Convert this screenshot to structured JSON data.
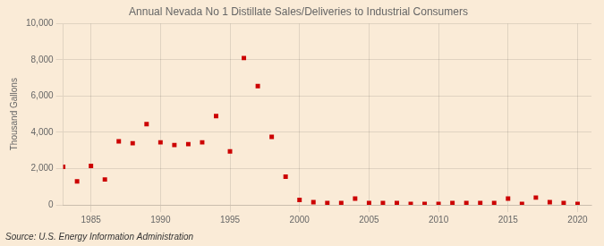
{
  "chart_data": {
    "type": "scatter",
    "title": "Annual Nevada No 1 Distillate Sales/Deliveries to Industrial Consumers",
    "ylabel": "Thousand Gallons",
    "annotations": [
      "Source: U.S. Energy Information Administration"
    ],
    "color": "#cc0000",
    "marker": "square",
    "grid": true,
    "xlim": [
      1983,
      2021
    ],
    "ylim": [
      0,
      10000
    ],
    "xticks": [
      1985,
      1990,
      1995,
      2000,
      2005,
      2010,
      2015,
      2020
    ],
    "yticks": [
      0,
      {
        "value": 2000,
        "label": "2,000"
      },
      {
        "value": 4000,
        "label": "4,000"
      },
      {
        "value": 6000,
        "label": "6,000"
      },
      {
        "value": 8000,
        "label": "8,000"
      },
      {
        "value": 10000,
        "label": "10,000"
      }
    ],
    "x": [
      1983,
      1984,
      1985,
      1986,
      1987,
      1988,
      1989,
      1990,
      1991,
      1992,
      1993,
      1994,
      1995,
      1996,
      1997,
      1998,
      1999,
      2000,
      2001,
      2002,
      2003,
      2004,
      2005,
      2006,
      2007,
      2008,
      2009,
      2010,
      2011,
      2012,
      2013,
      2014,
      2015,
      2016,
      2017,
      2018,
      2019,
      2020
    ],
    "values": [
      2100,
      1300,
      2150,
      1400,
      3500,
      3400,
      4450,
      3450,
      3300,
      3350,
      3450,
      4900,
      2950,
      8100,
      6550,
      3750,
      1550,
      270,
      150,
      100,
      100,
      350,
      100,
      100,
      100,
      50,
      50,
      50,
      100,
      100,
      100,
      100,
      350,
      50,
      400,
      150,
      100,
      50
    ]
  }
}
